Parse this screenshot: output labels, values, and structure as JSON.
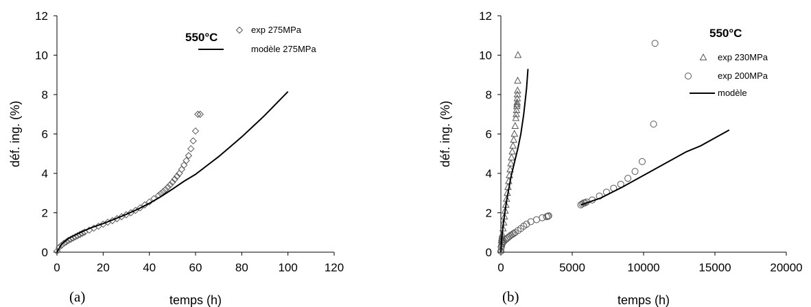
{
  "chart_data": [
    {
      "type": "scatter",
      "panel_label": "(a)",
      "annotation": "550°C",
      "xlabel": "temps (h)",
      "ylabel": "déf. ing. (%)",
      "xlim": [
        0,
        120
      ],
      "ylim": [
        0,
        12
      ],
      "xticks": [
        "0",
        "20",
        "40",
        "60",
        "80",
        "100",
        "120"
      ],
      "yticks": [
        "0",
        "2",
        "4",
        "6",
        "8",
        "10",
        "12"
      ],
      "grid": false,
      "legend_position": "top-right",
      "series": [
        {
          "name": "exp 275MPa",
          "kind": "marker",
          "marker": "diamond",
          "x": [
            0,
            1,
            2,
            3,
            4,
            5,
            6,
            7,
            8,
            9,
            10,
            11,
            12,
            14,
            16,
            18,
            20,
            22,
            24,
            26,
            28,
            30,
            32,
            34,
            36,
            38,
            40,
            42,
            44,
            45,
            46,
            47,
            48,
            49,
            50,
            51,
            52,
            53,
            54,
            55,
            56,
            57,
            58,
            59,
            60,
            61,
            62
          ],
          "y": [
            0.05,
            0.25,
            0.35,
            0.45,
            0.52,
            0.6,
            0.66,
            0.72,
            0.78,
            0.84,
            0.9,
            0.96,
            1.02,
            1.12,
            1.22,
            1.32,
            1.42,
            1.52,
            1.6,
            1.7,
            1.8,
            1.9,
            2.0,
            2.12,
            2.25,
            2.4,
            2.55,
            2.72,
            2.88,
            2.98,
            3.08,
            3.18,
            3.3,
            3.42,
            3.55,
            3.7,
            3.85,
            4.0,
            4.2,
            4.42,
            4.65,
            4.9,
            5.25,
            5.65,
            6.15,
            7.0,
            7.0
          ]
        },
        {
          "name": "modèle 275MPa",
          "kind": "line",
          "x": [
            0,
            2,
            5,
            10,
            15,
            20,
            25,
            30,
            35,
            40,
            45,
            50,
            55,
            60,
            65,
            70,
            75,
            80,
            85,
            90,
            95,
            100
          ],
          "y": [
            0,
            0.4,
            0.7,
            1.0,
            1.25,
            1.45,
            1.68,
            1.92,
            2.18,
            2.48,
            2.82,
            3.2,
            3.6,
            3.95,
            4.4,
            4.85,
            5.35,
            5.85,
            6.4,
            6.95,
            7.55,
            8.15
          ]
        }
      ]
    },
    {
      "type": "scatter",
      "panel_label": "(b)",
      "annotation": "550°C",
      "xlabel": "temps (h)",
      "ylabel": "déf. ing. (%)",
      "xlim": [
        0,
        20000
      ],
      "ylim": [
        0,
        12
      ],
      "xticks": [
        "0",
        "5000",
        "10000",
        "15000",
        "20000"
      ],
      "yticks": [
        "0",
        "2",
        "4",
        "6",
        "8",
        "10",
        "12"
      ],
      "grid": false,
      "legend_position": "top-right",
      "series": [
        {
          "name": "exp 230MPa",
          "kind": "marker",
          "marker": "triangle",
          "x": [
            0,
            20,
            40,
            60,
            80,
            100,
            150,
            200,
            250,
            300,
            350,
            400,
            450,
            500,
            550,
            600,
            650,
            700,
            750,
            800,
            850,
            900,
            950,
            1000,
            1050,
            1080,
            1100,
            1120,
            1130,
            1140,
            1150,
            1160,
            1170,
            1180,
            1200
          ],
          "y": [
            0.1,
            0.4,
            0.6,
            0.7,
            0.8,
            0.9,
            1.2,
            1.5,
            1.8,
            2.1,
            2.4,
            2.7,
            3.0,
            3.3,
            3.6,
            3.9,
            4.2,
            4.5,
            4.8,
            5.1,
            5.4,
            5.7,
            6.0,
            6.4,
            6.8,
            7.0,
            7.2,
            7.4,
            7.5,
            7.6,
            7.8,
            8.0,
            8.2,
            8.7,
            10.0
          ]
        },
        {
          "name": "exp 200MPa",
          "kind": "marker",
          "marker": "circle",
          "x": [
            0,
            30,
            60,
            100,
            150,
            200,
            300,
            400,
            500,
            600,
            700,
            800,
            900,
            1000,
            1200,
            1400,
            1600,
            1800,
            2100,
            2500,
            2900,
            3200,
            3300,
            3350,
            5600,
            5700,
            5800,
            5900,
            6000,
            6400,
            6900,
            7400,
            7900,
            8400,
            8900,
            9400,
            9900,
            10700,
            10800
          ],
          "y": [
            0.05,
            0.25,
            0.35,
            0.45,
            0.5,
            0.55,
            0.62,
            0.68,
            0.74,
            0.8,
            0.86,
            0.9,
            0.95,
            1.0,
            1.1,
            1.2,
            1.32,
            1.42,
            1.55,
            1.65,
            1.75,
            1.8,
            1.82,
            1.85,
            2.4,
            2.45,
            2.5,
            2.5,
            2.55,
            2.65,
            2.85,
            3.05,
            3.25,
            3.45,
            3.75,
            4.1,
            4.6,
            6.5,
            10.6
          ]
        },
        {
          "name": "modèle",
          "kind": "line",
          "segments": [
            {
              "x": [
                0,
                50,
                100,
                200,
                300,
                400,
                500,
                600,
                700,
                800,
                900,
                1000,
                1100,
                1200,
                1400,
                1600,
                1800,
                1900
              ],
              "y": [
                0,
                0.6,
                1.0,
                1.6,
                2.1,
                2.6,
                3.0,
                3.4,
                3.8,
                4.1,
                4.4,
                4.7,
                5.0,
                5.3,
                6.0,
                7.0,
                8.3,
                9.3
              ]
            },
            {
              "x": [
                5600,
                7000,
                8500,
                10000,
                11500,
                13000,
                14000,
                15000,
                16000
              ],
              "y": [
                2.4,
                2.75,
                3.3,
                3.9,
                4.5,
                5.1,
                5.4,
                5.8,
                6.2
              ]
            }
          ]
        }
      ]
    }
  ]
}
